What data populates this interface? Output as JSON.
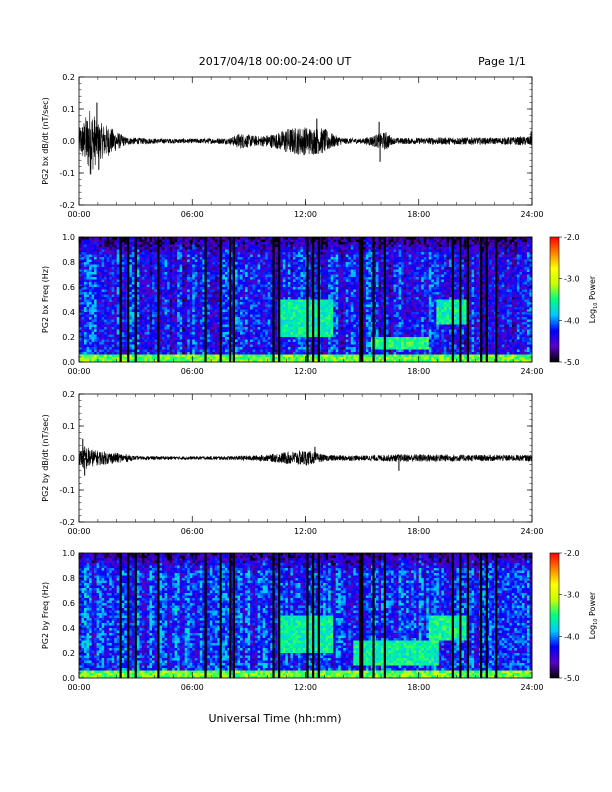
{
  "header": {
    "date_range": "2017/04/18  00:00-24:00 UT",
    "page": "Page 1/1"
  },
  "footer": {
    "xlabel": "Universal Time (hh:mm)"
  },
  "colorbar": {
    "label": "Log",
    "label_sub": "10",
    "label_rest": " Power",
    "ticks": [
      "-2.0",
      "-3.0",
      "-4.0",
      "-5.0"
    ],
    "range": [
      -5.0,
      -2.0
    ],
    "colors": [
      "#000000",
      "#5a00c8",
      "#0000ff",
      "#00c8ff",
      "#00ff80",
      "#c8ff00",
      "#ffff00",
      "#ff8000",
      "#ff0000"
    ]
  },
  "chart_data": [
    {
      "type": "line",
      "ylabel": "PG2 bx dB/dt (nT/sec)",
      "ylim": [
        -0.2,
        0.2
      ],
      "yticks": [
        "0.2",
        "0.1",
        "0.0",
        "-0.1",
        "-0.2"
      ],
      "xticks": [
        "00:00",
        "06:00",
        "12:00",
        "18:00",
        "24:00"
      ],
      "xlim_hours": [
        0,
        24
      ],
      "series_color": "#000000",
      "envelope": [
        {
          "t": 0.0,
          "amp": 0.04
        },
        {
          "t": 0.3,
          "amp": 0.07
        },
        {
          "t": 0.6,
          "amp": 0.11
        },
        {
          "t": 1.0,
          "amp": 0.06
        },
        {
          "t": 1.5,
          "amp": 0.05
        },
        {
          "t": 2.0,
          "amp": 0.03
        },
        {
          "t": 2.5,
          "amp": 0.012
        },
        {
          "t": 4.0,
          "amp": 0.008
        },
        {
          "t": 6.0,
          "amp": 0.007
        },
        {
          "t": 8.0,
          "amp": 0.01
        },
        {
          "t": 8.5,
          "amp": 0.025
        },
        {
          "t": 9.5,
          "amp": 0.015
        },
        {
          "t": 10.5,
          "amp": 0.025
        },
        {
          "t": 11.0,
          "amp": 0.04
        },
        {
          "t": 12.0,
          "amp": 0.045
        },
        {
          "t": 13.0,
          "amp": 0.04
        },
        {
          "t": 13.5,
          "amp": 0.02
        },
        {
          "t": 14.0,
          "amp": 0.01
        },
        {
          "t": 15.0,
          "amp": 0.008
        },
        {
          "t": 16.3,
          "amp": 0.03
        },
        {
          "t": 16.6,
          "amp": 0.01
        },
        {
          "t": 18.0,
          "amp": 0.01
        },
        {
          "t": 20.0,
          "amp": 0.012
        },
        {
          "t": 22.0,
          "amp": 0.01
        },
        {
          "t": 24.0,
          "amp": 0.015
        }
      ],
      "spikes": [
        {
          "t": 0.95,
          "v": 0.12
        },
        {
          "t": 1.05,
          "v": -0.09
        },
        {
          "t": 12.6,
          "v": 0.07
        },
        {
          "t": 15.95,
          "v": -0.065
        },
        {
          "t": 15.9,
          "v": 0.06
        },
        {
          "t": 23.95,
          "v": 0.03
        }
      ]
    },
    {
      "type": "heatmap",
      "ylabel": "PG2 bx Freq (Hz)",
      "ylim": [
        0.0,
        1.0
      ],
      "yticks": [
        "1.0",
        "0.8",
        "0.6",
        "0.4",
        "0.2",
        "0.0"
      ],
      "xticks": [
        "00:00",
        "06:00",
        "12:00",
        "18:00",
        "24:00"
      ],
      "xlim_hours": [
        0,
        24
      ],
      "z_units": "log10 power",
      "z_range": [
        -5.0,
        -2.0
      ],
      "background_level": -4.3,
      "low_freq_enhancement": -3.3,
      "enhanced_regions": [
        {
          "t_start": 10.5,
          "t_end": 13.5,
          "f_low": 0.2,
          "f_high": 0.5,
          "level": -3.6
        },
        {
          "t_start": 19.0,
          "t_end": 20.5,
          "f_low": 0.3,
          "f_high": 0.5,
          "level": -3.6
        },
        {
          "t_start": 15.5,
          "t_end": 18.5,
          "f_low": 0.1,
          "f_high": 0.2,
          "level": -3.5
        }
      ],
      "data_gaps_hours": [
        2.2,
        2.6,
        3.0,
        4.2,
        6.7,
        7.5,
        8.0,
        8.2,
        10.3,
        10.6,
        12.1,
        12.4,
        12.7,
        14.9,
        15.0,
        15.6,
        16.2,
        19.8,
        20.2,
        20.6,
        21.3,
        21.6,
        22.1
      ]
    },
    {
      "type": "line",
      "ylabel": "PG2 by dB/dt (nT/sec)",
      "ylim": [
        -0.2,
        0.2
      ],
      "yticks": [
        "0.2",
        "0.1",
        "0.0",
        "-0.1",
        "-0.2"
      ],
      "xticks": [
        "00:00",
        "06:00",
        "12:00",
        "18:00",
        "24:00"
      ],
      "xlim_hours": [
        0,
        24
      ],
      "series_color": "#000000",
      "envelope": [
        {
          "t": 0.0,
          "amp": 0.02
        },
        {
          "t": 0.3,
          "amp": 0.04
        },
        {
          "t": 0.8,
          "amp": 0.025
        },
        {
          "t": 1.5,
          "amp": 0.02
        },
        {
          "t": 2.5,
          "amp": 0.012
        },
        {
          "t": 3.0,
          "amp": 0.006
        },
        {
          "t": 6.0,
          "amp": 0.005
        },
        {
          "t": 8.0,
          "amp": 0.006
        },
        {
          "t": 10.0,
          "amp": 0.01
        },
        {
          "t": 11.0,
          "amp": 0.02
        },
        {
          "t": 12.0,
          "amp": 0.025
        },
        {
          "t": 13.0,
          "amp": 0.01
        },
        {
          "t": 15.0,
          "amp": 0.008
        },
        {
          "t": 17.0,
          "amp": 0.012
        },
        {
          "t": 19.0,
          "amp": 0.012
        },
        {
          "t": 21.0,
          "amp": 0.01
        },
        {
          "t": 24.0,
          "amp": 0.01
        }
      ],
      "spikes": [
        {
          "t": 0.2,
          "v": 0.06
        },
        {
          "t": 0.3,
          "v": -0.055
        },
        {
          "t": 12.5,
          "v": 0.035
        },
        {
          "t": 16.95,
          "v": -0.04
        }
      ]
    },
    {
      "type": "heatmap",
      "ylabel": "PG2 by Freq (Hz)",
      "ylim": [
        0.0,
        1.0
      ],
      "yticks": [
        "1.0",
        "0.8",
        "0.6",
        "0.4",
        "0.2",
        "0.0"
      ],
      "xticks": [
        "00:00",
        "06:00",
        "12:00",
        "18:00",
        "24:00"
      ],
      "xlim_hours": [
        0,
        24
      ],
      "z_units": "log10 power",
      "z_range": [
        -5.0,
        -2.0
      ],
      "background_level": -4.2,
      "low_freq_enhancement": -3.3,
      "enhanced_regions": [
        {
          "t_start": 10.5,
          "t_end": 13.5,
          "f_low": 0.2,
          "f_high": 0.5,
          "level": -3.6
        },
        {
          "t_start": 18.5,
          "t_end": 20.5,
          "f_low": 0.3,
          "f_high": 0.5,
          "level": -3.55
        },
        {
          "t_start": 14.5,
          "t_end": 19.0,
          "f_low": 0.1,
          "f_high": 0.3,
          "level": -3.6
        }
      ],
      "data_gaps_hours": [
        2.2,
        2.6,
        3.0,
        4.2,
        6.7,
        7.5,
        8.0,
        8.2,
        10.3,
        10.6,
        12.1,
        12.4,
        12.7,
        14.9,
        15.0,
        15.6,
        16.2,
        19.8,
        20.2,
        20.6,
        21.3,
        21.6,
        22.1
      ]
    }
  ]
}
